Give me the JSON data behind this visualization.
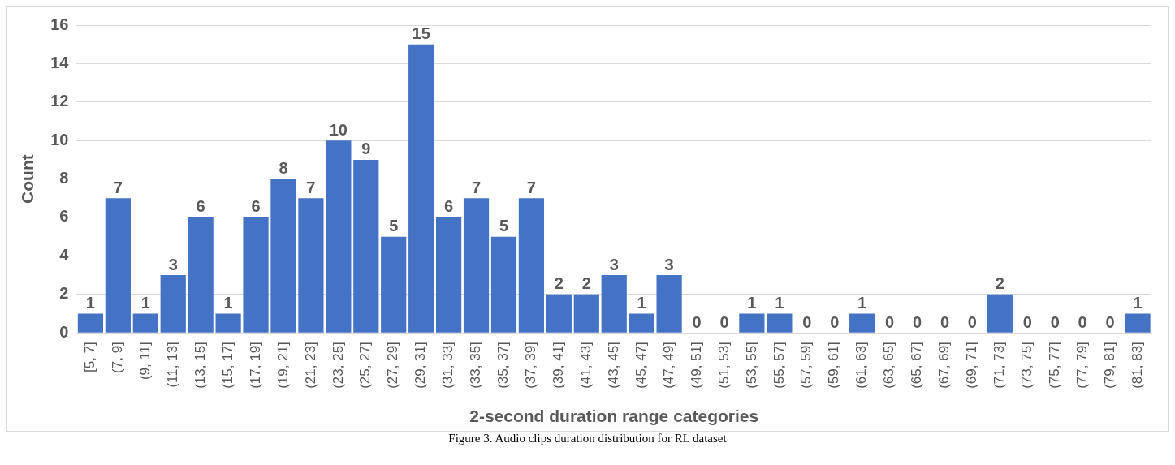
{
  "chart_data": {
    "type": "bar",
    "xlabel": "2-second duration range categories",
    "ylabel": "Count",
    "categories": [
      "[5, 7]",
      "(7, 9]",
      "(9, 11]",
      "(11, 13]",
      "(13, 15]",
      "(15, 17]",
      "(17, 19]",
      "(19, 21]",
      "(21, 23]",
      "(23, 25]",
      "(25, 27]",
      "(27, 29]",
      "(29, 31]",
      "(31, 33]",
      "(33, 35]",
      "(35, 37]",
      "(37, 39]",
      "(39, 41]",
      "(41, 43]",
      "(43, 45]",
      "(45, 47]",
      "(47, 49]",
      "(49, 51]",
      "(51, 53]",
      "(53, 55]",
      "(55, 57]",
      "(57, 59]",
      "(59, 61]",
      "(61, 63]",
      "(63, 65]",
      "(65, 67]",
      "(67, 69]",
      "(69, 71]",
      "(71, 73]",
      "(73, 75]",
      "(75, 77]",
      "(77, 79]",
      "(79, 81]",
      "(81, 83]"
    ],
    "values": [
      1,
      7,
      1,
      3,
      6,
      1,
      6,
      8,
      7,
      10,
      9,
      5,
      15,
      6,
      7,
      5,
      7,
      2,
      2,
      3,
      1,
      3,
      0,
      0,
      1,
      1,
      0,
      0,
      1,
      0,
      0,
      0,
      0,
      2,
      0,
      0,
      0,
      0,
      1
    ],
    "color": "#4472c4",
    "ylim": [
      0,
      16
    ],
    "yticks": [
      0,
      2,
      4,
      6,
      8,
      10,
      12,
      14,
      16
    ],
    "grid": "y",
    "data_labels": true,
    "annotations": [
      "Figure 3. Audio clips duration distribution for RL dataset"
    ]
  }
}
